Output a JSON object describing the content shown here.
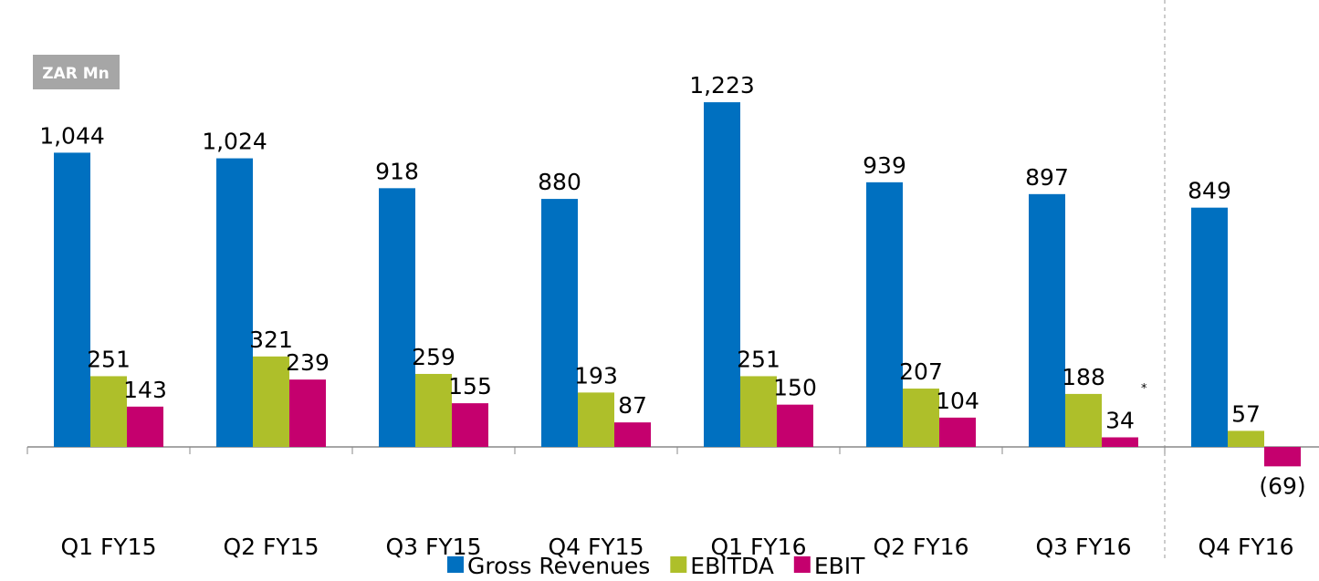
{
  "chart_data": {
    "type": "bar",
    "annotations": [
      "ZAR Mn",
      "*"
    ],
    "categories": [
      "Q1 FY15",
      "Q2 FY15",
      "Q3 FY15",
      "Q4 FY15",
      "Q1 FY16",
      "Q2 FY16",
      "Q3 FY16",
      "Q4 FY16"
    ],
    "series": [
      {
        "name": "Gross Revenues",
        "color": "#0070c0",
        "values": [
          1044,
          1024,
          918,
          880,
          1223,
          939,
          897,
          849
        ],
        "value_labels": [
          "1,044",
          "1,024",
          "918",
          "880",
          "1,223",
          "939",
          "897",
          "849"
        ]
      },
      {
        "name": "EBITDA",
        "color": "#aebf2a",
        "values": [
          251,
          321,
          259,
          193,
          251,
          207,
          188,
          57
        ]
      },
      {
        "name": "EBIT",
        "color": "#c5006e",
        "values": [
          143,
          239,
          155,
          87,
          150,
          104,
          34,
          -69
        ],
        "value_labels": [
          "143",
          "239",
          "155",
          "87",
          "150",
          "104",
          "34",
          "(69)"
        ]
      }
    ]
  }
}
